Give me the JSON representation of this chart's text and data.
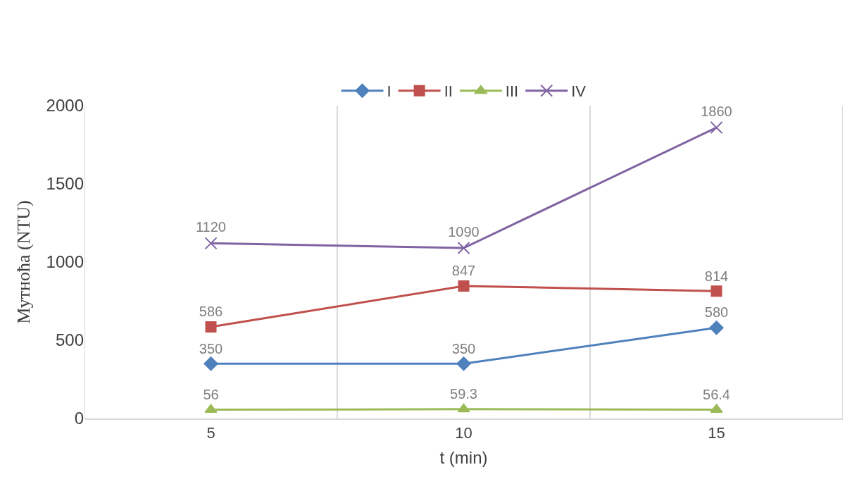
{
  "chart_data": {
    "type": "line",
    "xlabel": "t (min)",
    "ylabel": "Мутноћа (NTU)",
    "categories": [
      "5",
      "10",
      "15"
    ],
    "series": [
      {
        "name": "I",
        "color": "#4f81bd",
        "marker": "diamond",
        "values": [
          350,
          350,
          580
        ]
      },
      {
        "name": "II",
        "color": "#c0504d",
        "marker": "square",
        "values": [
          586,
          847,
          814
        ]
      },
      {
        "name": "III",
        "color": "#9bbb59",
        "marker": "triangle",
        "values": [
          56,
          59.3,
          56.4
        ]
      },
      {
        "name": "IV",
        "color": "#8064a2",
        "marker": "cross",
        "values": [
          1120,
          1090,
          1860
        ]
      }
    ],
    "ylim": [
      0,
      2000
    ],
    "yticks": [
      0,
      500,
      1000,
      1500,
      2000
    ],
    "grid": "x",
    "legend": "top",
    "data_labels": true,
    "line_style": "solid"
  }
}
